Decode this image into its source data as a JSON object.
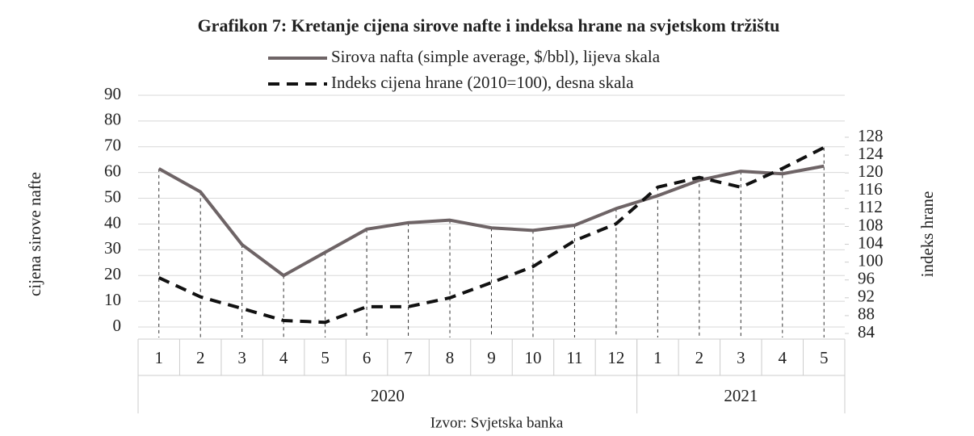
{
  "chart_data": {
    "type": "line",
    "title": "Grafikon 7: Kretanje cijena sirove nafte i indeksa hrane na svjetskom tržištu",
    "ylabel": "cijena sirove nafte",
    "y2label": "indeks hrane",
    "source": "Izvor: Svjetska banka",
    "categories": [
      "1",
      "2",
      "3",
      "4",
      "5",
      "6",
      "7",
      "8",
      "9",
      "10",
      "11",
      "12",
      "1",
      "2",
      "3",
      "4",
      "5"
    ],
    "groups": [
      {
        "label": "2020",
        "count": 12
      },
      {
        "label": "2021",
        "count": 5
      }
    ],
    "series": [
      {
        "name": "Sirova nafta (simple average, $/bbl), lijeva skala",
        "color": "#6e6466",
        "dash": false,
        "values": [
          61.5,
          52.5,
          32,
          20,
          29,
          38,
          40.5,
          41.5,
          38.5,
          37.5,
          39.5,
          46,
          51,
          57,
          60.5,
          59.5,
          62.5
        ]
      },
      {
        "name": "Indeks cijena hrane (2010=100), desna skala",
        "color": "#111111",
        "dash": true,
        "axis": "y2",
        "values": [
          96.5,
          92.2,
          89.6,
          86.9,
          86.5,
          90,
          90,
          92,
          95.4,
          99,
          104.8,
          108.6,
          116.8,
          119,
          116.8,
          121,
          125.7
        ]
      }
    ],
    "ylim": [
      0,
      90
    ],
    "yticks": [
      0,
      10,
      20,
      30,
      40,
      50,
      60,
      70,
      80,
      90
    ],
    "y2lim": [
      84,
      128
    ],
    "y2ticks": [
      84,
      88,
      92,
      96,
      100,
      104,
      108,
      112,
      116,
      120,
      124,
      128
    ],
    "grid": true
  }
}
